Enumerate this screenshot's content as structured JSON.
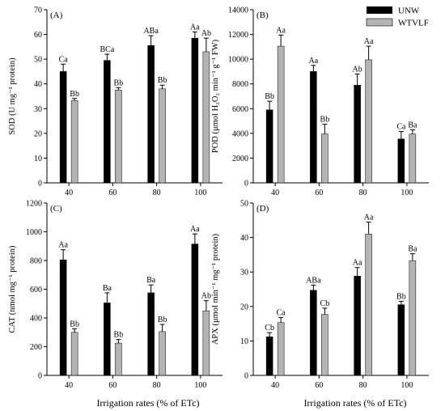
{
  "figure": {
    "xlabel": "Irrigation rates (% of ETc)"
  },
  "legend": {
    "items": [
      {
        "name": "UNW",
        "color": "#000000"
      },
      {
        "name": "WTVLF",
        "color": "#b4b4b4"
      }
    ]
  },
  "chart_data": [
    {
      "id": "A",
      "panel_label": "(A)",
      "type": "bar",
      "categories": [
        "40",
        "60",
        "80",
        "100"
      ],
      "ylabel": "SOD (U mg⁻¹ protein)",
      "ylim": [
        0,
        70
      ],
      "yticks": [
        0,
        10,
        20,
        30,
        40,
        50,
        60,
        70
      ],
      "series": [
        {
          "name": "UNW",
          "color": "#000000",
          "values": [
            45,
            49.5,
            55.5,
            58.5
          ],
          "errors": [
            3,
            2.5,
            4,
            2.5
          ],
          "labels": [
            "Ca",
            "BCa",
            "ABa",
            "Aa"
          ]
        },
        {
          "name": "WTVLF",
          "color": "#b4b4b4",
          "values": [
            33.3,
            37.5,
            38,
            53
          ],
          "errors": [
            0.8,
            1,
            1.5,
            5.5
          ],
          "labels": [
            "Bb",
            "Bb",
            "Bb",
            "Ab"
          ]
        }
      ]
    },
    {
      "id": "B",
      "panel_label": "(B)",
      "type": "bar",
      "categories": [
        "40",
        "60",
        "80",
        "100"
      ],
      "ylabel": "POD (μmol H₂O₂ min⁻¹ g⁻¹ FW)",
      "ylim": [
        0,
        14000
      ],
      "yticks": [
        0,
        2000,
        4000,
        6000,
        8000,
        10000,
        12000,
        14000
      ],
      "series": [
        {
          "name": "UNW",
          "color": "#000000",
          "values": [
            5900,
            9000,
            7900,
            3550
          ],
          "errors": [
            700,
            500,
            900,
            600
          ],
          "labels": [
            "Bb",
            "Aa",
            "Ab",
            "Ca"
          ]
        },
        {
          "name": "WTVLF",
          "color": "#b4b4b4",
          "values": [
            11050,
            3950,
            9950,
            3950
          ],
          "errors": [
            900,
            800,
            1100,
            350
          ],
          "labels": [
            "Aa",
            "Bb",
            "Aa",
            "Ba"
          ]
        }
      ]
    },
    {
      "id": "C",
      "panel_label": "(C)",
      "type": "bar",
      "categories": [
        "40",
        "60",
        "80",
        "100"
      ],
      "ylabel": "CAT (nmol mg⁻¹ protein)",
      "ylim": [
        0,
        1200
      ],
      "yticks": [
        0,
        200,
        400,
        600,
        800,
        1000,
        1200
      ],
      "series": [
        {
          "name": "UNW",
          "color": "#000000",
          "values": [
            805,
            505,
            575,
            915
          ],
          "errors": [
            70,
            70,
            55,
            70
          ],
          "labels": [
            "Aa",
            "Ba",
            "Ba",
            "Aa"
          ]
        },
        {
          "name": "WTVLF",
          "color": "#b4b4b4",
          "values": [
            300,
            225,
            305,
            450
          ],
          "errors": [
            25,
            25,
            50,
            70
          ],
          "labels": [
            "Bb",
            "Bb",
            "Bb",
            "Ab"
          ]
        }
      ]
    },
    {
      "id": "D",
      "panel_label": "(D)",
      "type": "bar",
      "categories": [
        "40",
        "60",
        "80",
        "100"
      ],
      "ylabel": "APX (μmol min⁻¹ mg⁻¹ protein)",
      "ylim": [
        0,
        50
      ],
      "yticks": [
        0,
        10,
        20,
        30,
        40,
        50
      ],
      "series": [
        {
          "name": "UNW",
          "color": "#000000",
          "values": [
            11.2,
            24.7,
            28.8,
            20.5
          ],
          "errors": [
            1.2,
            1.5,
            2.5,
            1
          ],
          "labels": [
            "Cb",
            "ABa",
            "Aa",
            "Bb"
          ]
        },
        {
          "name": "WTVLF",
          "color": "#b4b4b4",
          "values": [
            15.3,
            17.7,
            41,
            33.3
          ],
          "errors": [
            1.5,
            1.8,
            3.5,
            2
          ],
          "labels": [
            "Ca",
            "Cb",
            "Aa",
            "Ba"
          ]
        }
      ]
    }
  ]
}
